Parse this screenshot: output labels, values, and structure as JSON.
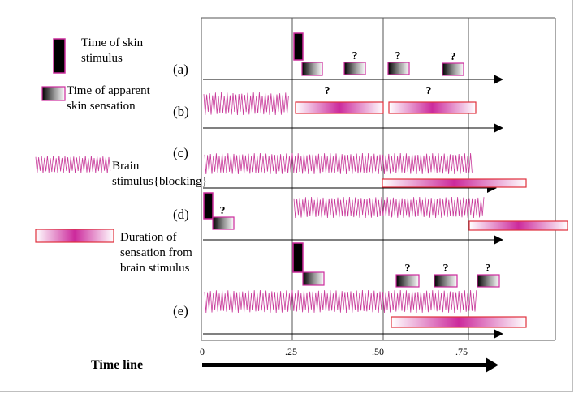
{
  "legend": {
    "skin_stimulus": "Time of skin stimulus",
    "skin_sensation": "Time of apparent skin sensation",
    "brain_stimulus": "Brain stimulus{blocking}",
    "brain_duration": "Duration of sensation from brain stimulus"
  },
  "rows": [
    "(a)",
    "(b)",
    "(c)",
    "(d)",
    "(e)"
  ],
  "ticks": [
    "0",
    ".25",
    ".50",
    ".75"
  ],
  "timeline_label": "Time line",
  "question_mark": "?",
  "colors": {
    "magenta": "#cc2a9c",
    "wave": "#c83a9a",
    "black": "#000000",
    "frame": "#bfbfbf",
    "red_border": "#e0303c"
  }
}
